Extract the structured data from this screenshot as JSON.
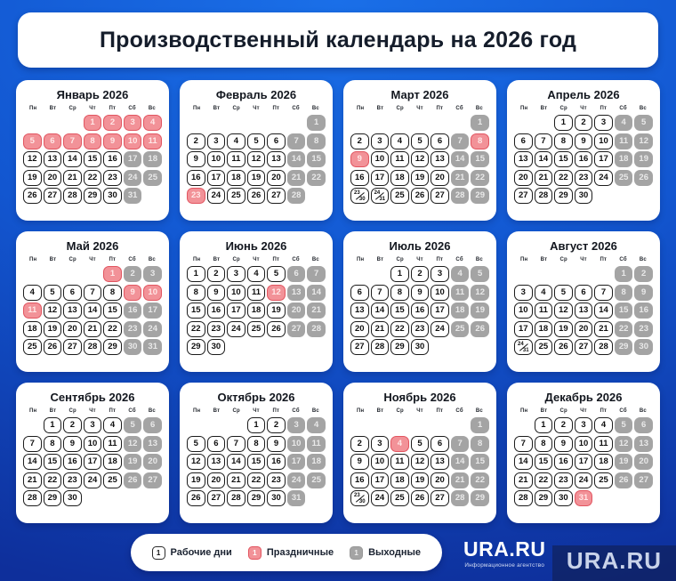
{
  "title": "Производственный календарь на 2026 год",
  "weekdays": [
    "Пн",
    "Вт",
    "Ср",
    "Чт",
    "Пт",
    "Сб",
    "Вс"
  ],
  "legend": [
    {
      "type": "work",
      "sample": "1",
      "label": "Рабочие дни"
    },
    {
      "type": "holiday",
      "sample": "1",
      "label": "Праздничные"
    },
    {
      "type": "weekend",
      "sample": "1",
      "label": "Выходные"
    }
  ],
  "branding": {
    "logo": "URA.RU",
    "tagline": "Информационное агентство",
    "watermark": "URA.RU"
  },
  "colors": {
    "bg_top": "#1a6fe8",
    "bg_bottom": "#0e2f9b",
    "holiday_fill": "#f29298",
    "holiday_border": "#e25560",
    "weekend_fill": "#a4a4a4",
    "work_border": "#1c1c1c"
  },
  "months": [
    {
      "name": "Январь 2026",
      "weeks": [
        [
          "",
          "",
          "",
          "1:h",
          "2:h",
          "3:h",
          "4:h"
        ],
        [
          "5:h",
          "6:h",
          "7:h",
          "8:h",
          "9:h",
          "10:h",
          "11:h"
        ],
        [
          "12:w",
          "13:w",
          "14:w",
          "15:w",
          "16:w",
          "17:e",
          "18:e"
        ],
        [
          "19:w",
          "20:w",
          "21:w",
          "22:w",
          "23:w",
          "24:e",
          "25:e"
        ],
        [
          "26:w",
          "27:w",
          "28:w",
          "29:w",
          "30:w",
          "31:e",
          ""
        ]
      ]
    },
    {
      "name": "Февраль 2026",
      "weeks": [
        [
          "",
          "",
          "",
          "",
          "",
          "",
          "1:e"
        ],
        [
          "2:w",
          "3:w",
          "4:w",
          "5:w",
          "6:w",
          "7:e",
          "8:e"
        ],
        [
          "9:w",
          "10:w",
          "11:w",
          "12:w",
          "13:w",
          "14:e",
          "15:e"
        ],
        [
          "16:w",
          "17:w",
          "18:w",
          "19:w",
          "20:w",
          "21:e",
          "22:e"
        ],
        [
          "23:h",
          "24:w",
          "25:w",
          "26:w",
          "27:w",
          "28:e",
          ""
        ]
      ]
    },
    {
      "name": "Март 2026",
      "weeks": [
        [
          "",
          "",
          "",
          "",
          "",
          "",
          "1:e"
        ],
        [
          "2:w",
          "3:w",
          "4:w",
          "5:w",
          "6:w",
          "7:e",
          "8:h"
        ],
        [
          "9:h",
          "10:w",
          "11:w",
          "12:w",
          "13:w",
          "14:e",
          "15:e"
        ],
        [
          "16:w",
          "17:w",
          "18:w",
          "19:w",
          "20:w",
          "21:e",
          "22:e"
        ],
        [
          "23/30:w",
          "24/31:w",
          "25:w",
          "26:w",
          "27:w",
          "28:e",
          "29:e"
        ]
      ]
    },
    {
      "name": "Апрель 2026",
      "weeks": [
        [
          "",
          "",
          "1:w",
          "2:w",
          "3:w",
          "4:e",
          "5:e"
        ],
        [
          "6:w",
          "7:w",
          "8:w",
          "9:w",
          "10:w",
          "11:e",
          "12:e"
        ],
        [
          "13:w",
          "14:w",
          "15:w",
          "16:w",
          "17:w",
          "18:e",
          "19:e"
        ],
        [
          "20:w",
          "21:w",
          "22:w",
          "23:w",
          "24:w",
          "25:e",
          "26:e"
        ],
        [
          "27:w",
          "28:w",
          "29:w",
          "30:w",
          "",
          "",
          ""
        ]
      ]
    },
    {
      "name": "Май 2026",
      "weeks": [
        [
          "",
          "",
          "",
          "",
          "1:h",
          "2:e",
          "3:e"
        ],
        [
          "4:w",
          "5:w",
          "6:w",
          "7:w",
          "8:w",
          "9:h",
          "10:h"
        ],
        [
          "11:h",
          "12:w",
          "13:w",
          "14:w",
          "15:w",
          "16:e",
          "17:e"
        ],
        [
          "18:w",
          "19:w",
          "20:w",
          "21:w",
          "22:w",
          "23:e",
          "24:e"
        ],
        [
          "25:w",
          "26:w",
          "27:w",
          "28:w",
          "29:w",
          "30:e",
          "31:e"
        ]
      ]
    },
    {
      "name": "Июнь 2026",
      "weeks": [
        [
          "1:w",
          "2:w",
          "3:w",
          "4:w",
          "5:w",
          "6:e",
          "7:e"
        ],
        [
          "8:w",
          "9:w",
          "10:w",
          "11:w",
          "12:h",
          "13:e",
          "14:e"
        ],
        [
          "15:w",
          "16:w",
          "17:w",
          "18:w",
          "19:w",
          "20:e",
          "21:e"
        ],
        [
          "22:w",
          "23:w",
          "24:w",
          "25:w",
          "26:w",
          "27:e",
          "28:e"
        ],
        [
          "29:w",
          "30:w",
          "",
          "",
          "",
          "",
          ""
        ]
      ]
    },
    {
      "name": "Июль 2026",
      "weeks": [
        [
          "",
          "",
          "1:w",
          "2:w",
          "3:w",
          "4:e",
          "5:e"
        ],
        [
          "6:w",
          "7:w",
          "8:w",
          "9:w",
          "10:w",
          "11:e",
          "12:e"
        ],
        [
          "13:w",
          "14:w",
          "15:w",
          "16:w",
          "17:w",
          "18:e",
          "19:e"
        ],
        [
          "20:w",
          "21:w",
          "22:w",
          "23:w",
          "24:w",
          "25:e",
          "26:e"
        ],
        [
          "27:w",
          "28:w",
          "29:w",
          "30:w",
          "",
          "",
          ""
        ]
      ]
    },
    {
      "name": "Август 2026",
      "weeks": [
        [
          "",
          "",
          "",
          "",
          "",
          "1:e",
          "2:e"
        ],
        [
          "3:w",
          "4:w",
          "5:w",
          "6:w",
          "7:w",
          "8:e",
          "9:e"
        ],
        [
          "10:w",
          "11:w",
          "12:w",
          "13:w",
          "14:w",
          "15:e",
          "16:e"
        ],
        [
          "17:w",
          "18:w",
          "19:w",
          "20:w",
          "21:w",
          "22:e",
          "23:e"
        ],
        [
          "24/31:w",
          "25:w",
          "26:w",
          "27:w",
          "28:w",
          "29:e",
          "30:e"
        ]
      ]
    },
    {
      "name": "Сентябрь 2026",
      "weeks": [
        [
          "",
          "1:w",
          "2:w",
          "3:w",
          "4:w",
          "5:e",
          "6:e"
        ],
        [
          "7:w",
          "8:w",
          "9:w",
          "10:w",
          "11:w",
          "12:e",
          "13:e"
        ],
        [
          "14:w",
          "15:w",
          "16:w",
          "17:w",
          "18:w",
          "19:e",
          "20:e"
        ],
        [
          "21:w",
          "22:w",
          "23:w",
          "24:w",
          "25:w",
          "26:e",
          "27:e"
        ],
        [
          "28:w",
          "29:w",
          "30:w",
          "",
          "",
          "",
          ""
        ]
      ]
    },
    {
      "name": "Октябрь 2026",
      "weeks": [
        [
          "",
          "",
          "",
          "1:w",
          "2:w",
          "3:e",
          "4:e"
        ],
        [
          "5:w",
          "6:w",
          "7:w",
          "8:w",
          "9:w",
          "10:e",
          "11:e"
        ],
        [
          "12:w",
          "13:w",
          "14:w",
          "15:w",
          "16:w",
          "17:e",
          "18:e"
        ],
        [
          "19:w",
          "20:w",
          "21:w",
          "22:w",
          "23:w",
          "24:e",
          "25:e"
        ],
        [
          "26:w",
          "27:w",
          "28:w",
          "29:w",
          "30:w",
          "31:e",
          ""
        ]
      ]
    },
    {
      "name": "Ноябрь 2026",
      "weeks": [
        [
          "",
          "",
          "",
          "",
          "",
          "",
          "1:e"
        ],
        [
          "2:w",
          "3:w",
          "4:h",
          "5:w",
          "6:w",
          "7:e",
          "8:e"
        ],
        [
          "9:w",
          "10:w",
          "11:w",
          "12:w",
          "13:w",
          "14:e",
          "15:e"
        ],
        [
          "16:w",
          "17:w",
          "18:w",
          "19:w",
          "20:w",
          "21:e",
          "22:e"
        ],
        [
          "23/30:w",
          "24:w",
          "25:w",
          "26:w",
          "27:w",
          "28:e",
          "29:e"
        ]
      ]
    },
    {
      "name": "Декабрь 2026",
      "weeks": [
        [
          "",
          "1:w",
          "2:w",
          "3:w",
          "4:w",
          "5:e",
          "6:e"
        ],
        [
          "7:w",
          "8:w",
          "9:w",
          "10:w",
          "11:w",
          "12:e",
          "13:e"
        ],
        [
          "14:w",
          "15:w",
          "16:w",
          "17:w",
          "18:w",
          "19:e",
          "20:e"
        ],
        [
          "21:w",
          "22:w",
          "23:w",
          "24:w",
          "25:w",
          "26:e",
          "27:e"
        ],
        [
          "28:w",
          "29:w",
          "30:w",
          "31:h",
          "",
          "",
          ""
        ]
      ]
    }
  ]
}
